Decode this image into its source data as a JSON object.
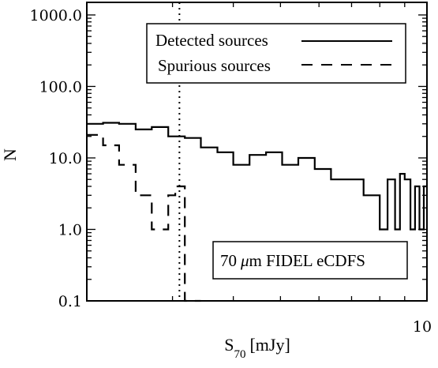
{
  "chart_data": {
    "type": "line",
    "subtype": "histogram-step",
    "title": "",
    "xlabel": "S",
    "xlabel_subscript": "70",
    "xlabel_unit": "[mJy]",
    "ylabel": "N",
    "xscale": "log",
    "yscale": "log",
    "xlim": [
      2,
      10
    ],
    "ylim": [
      0.1,
      1500
    ],
    "xticks": [
      {
        "value": 10,
        "label": "10"
      }
    ],
    "yticks": [
      {
        "value": 0.1,
        "label": "0.1"
      },
      {
        "value": 1,
        "label": "1.0"
      },
      {
        "value": 10,
        "label": "10.0"
      },
      {
        "value": 100,
        "label": "100.0"
      },
      {
        "value": 1000,
        "label": "1000.0"
      }
    ],
    "grid": false,
    "vline": {
      "x": 3.1,
      "style": "dotted"
    },
    "legend": {
      "placement": "top-right",
      "entries": [
        {
          "label": "Detected sources",
          "style": "solid"
        },
        {
          "label": "Spurious sources",
          "style": "dashed"
        }
      ]
    },
    "annotation": {
      "prefix": "70",
      "mu": "μ",
      "suffix": "m FIDEL eCDFS",
      "placement": "bottom-right"
    },
    "series": [
      {
        "name": "Detected sources",
        "style": "solid",
        "edges": [
          2.0,
          2.16,
          2.33,
          2.52,
          2.72,
          2.94,
          3.18,
          3.43,
          3.71,
          4.0,
          4.32,
          4.67,
          5.04,
          5.44,
          5.88,
          6.35,
          6.86,
          7.41,
          8.0,
          8.3,
          8.6,
          8.8,
          9.0,
          9.25,
          9.45,
          9.65,
          9.85,
          10.0
        ],
        "values": [
          30,
          31,
          30,
          25,
          27,
          20,
          19,
          14,
          12,
          8,
          11,
          12,
          8,
          10,
          7,
          5,
          5,
          3,
          1,
          5,
          1,
          6,
          5,
          1,
          4,
          1,
          4
        ]
      },
      {
        "name": "Spurious sources",
        "style": "dashed",
        "edges": [
          2.0,
          2.16,
          2.33,
          2.52,
          2.72,
          2.94,
          3.04,
          3.18,
          3.43
        ],
        "values": [
          21,
          15,
          8,
          3,
          1,
          3,
          4,
          0.1
        ]
      }
    ]
  }
}
